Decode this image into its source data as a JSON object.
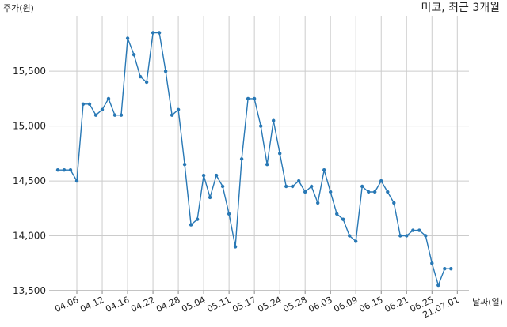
{
  "chart_data": {
    "type": "line",
    "title": "미코, 최근 3개월",
    "ylabel": "주가(원)",
    "xlabel": "날짜(일)",
    "ylim": [
      13500,
      16000
    ],
    "yticks": [
      13500,
      14000,
      14500,
      15000,
      15500
    ],
    "ytick_labels": [
      "13,500",
      "14,000",
      "14,500",
      "15,000",
      "15,500"
    ],
    "xticks": [
      "04.06",
      "04.12",
      "04.16",
      "04.22",
      "04.28",
      "05.04",
      "05.11",
      "05.17",
      "05.24",
      "05.28",
      "06.03",
      "06.09",
      "06.15",
      "06.21",
      "06.25",
      "21.07.01"
    ],
    "xtick_index": [
      3,
      7,
      11,
      15,
      19,
      23,
      27,
      31,
      35,
      39,
      43,
      47,
      51,
      55,
      59,
      63
    ],
    "grid": true,
    "colors": {
      "line": "#2878b5",
      "grid": "#cccccc"
    },
    "series": [
      {
        "values": [
          14600,
          14600,
          14600,
          14500,
          15200,
          15200,
          15100,
          15150,
          15250,
          15100,
          15100,
          15800,
          15650,
          15450,
          15400,
          15850,
          15850,
          15500,
          15100,
          15150,
          14650,
          14100,
          14150,
          14550,
          14350,
          14550,
          14450,
          14200,
          13900,
          14700,
          15250,
          15250,
          15000,
          14650,
          15050,
          14750,
          14450,
          14450,
          14500,
          14400,
          14450,
          14300,
          14600,
          14400,
          14200,
          14150,
          14000,
          13950,
          14450,
          14400,
          14400,
          14500,
          14400,
          14300,
          14000,
          14000,
          14050,
          14050,
          14000,
          13750,
          13550,
          13700,
          13700
        ]
      }
    ]
  }
}
